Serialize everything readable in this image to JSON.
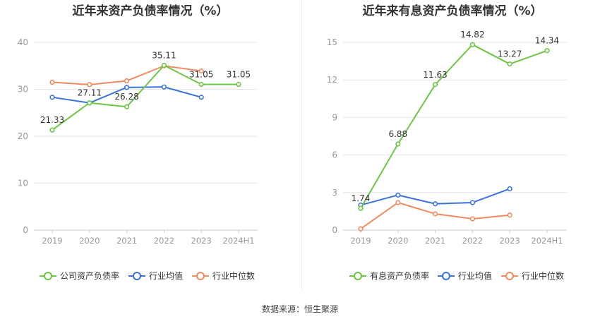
{
  "source_note": "数据来源：恒生聚源",
  "colors": {
    "company": "#6cc644",
    "avg": "#3a73d8",
    "median": "#ef8c5f",
    "grid": "#e6e6e6",
    "tick": "#999999",
    "title": "#333333"
  },
  "chart_data": [
    {
      "type": "line",
      "title": "近年来资产负债率情况（%）",
      "categories": [
        "2019",
        "2020",
        "2021",
        "2022",
        "2023",
        "2024H1"
      ],
      "ylim": [
        0,
        40
      ],
      "yticks": [
        0,
        10,
        20,
        30,
        40
      ],
      "grid": true,
      "legend_position": "bottom",
      "series": [
        {
          "name": "公司资产负债率",
          "color": "#6cc644",
          "values": [
            21.33,
            27.11,
            26.28,
            35.11,
            31.05,
            31.05
          ],
          "labels": [
            "21.33",
            "27.11",
            "26.28",
            "35.11",
            "31.05",
            "31.05"
          ]
        },
        {
          "name": "行业均值",
          "color": "#3a73d8",
          "values": [
            28.3,
            27.1,
            30.4,
            30.5,
            28.3,
            null
          ]
        },
        {
          "name": "行业中位数",
          "color": "#ef8c5f",
          "values": [
            31.5,
            31.0,
            31.8,
            35.0,
            33.9,
            null
          ]
        }
      ]
    },
    {
      "type": "line",
      "title": "近年来有息资产负债率情况（%）",
      "categories": [
        "2019",
        "2020",
        "2021",
        "2022",
        "2023",
        "2024H1"
      ],
      "ylim": [
        0,
        15
      ],
      "yticks": [
        0,
        3,
        6,
        9,
        12,
        15
      ],
      "grid": true,
      "legend_position": "bottom",
      "series": [
        {
          "name": "有息资产负债率",
          "color": "#6cc644",
          "values": [
            1.74,
            6.88,
            11.63,
            14.82,
            13.27,
            14.34
          ],
          "labels": [
            "1.74",
            "6.88",
            "11.63",
            "14.82",
            "13.27",
            "14.34"
          ]
        },
        {
          "name": "行业均值",
          "color": "#3a73d8",
          "values": [
            2.0,
            2.8,
            2.1,
            2.2,
            3.3,
            null
          ]
        },
        {
          "name": "行业中位数",
          "color": "#ef8c5f",
          "values": [
            0.1,
            2.2,
            1.3,
            0.9,
            1.2,
            null
          ]
        }
      ]
    }
  ]
}
